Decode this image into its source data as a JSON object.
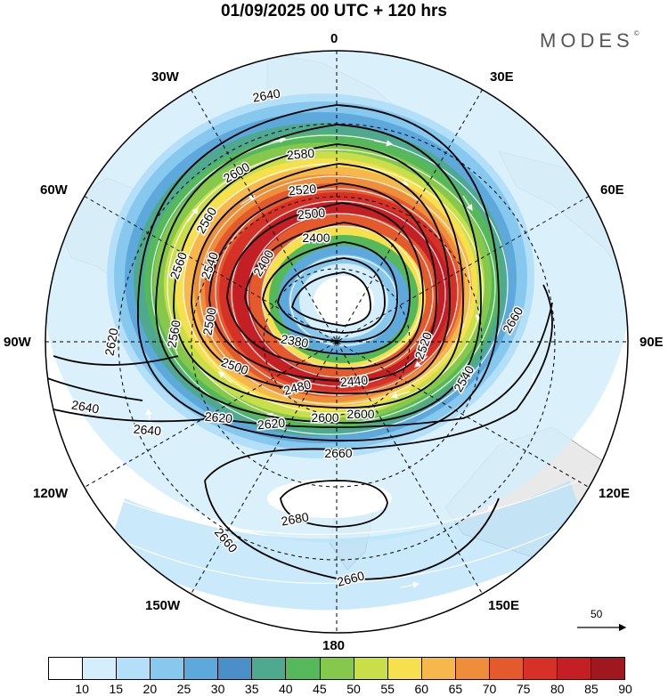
{
  "title": "01/09/2025  00 UTC  + 120 hrs",
  "brand": "MODES",
  "brand_mark": "©",
  "longitude_labels": {
    "n0": "0",
    "n30e": "30E",
    "n60e": "60E",
    "n90e": "90E",
    "n120e": "120E",
    "n150e": "150E",
    "n180": "180",
    "n150w": "150W",
    "n120w": "120W",
    "n90w": "90W",
    "n60w": "60W",
    "n30w": "30W"
  },
  "contour_labels": [
    "2640",
    "2600",
    "2580",
    "2560",
    "2540",
    "2520",
    "2500",
    "2400",
    "2380",
    "2400",
    "2500",
    "2560",
    "2560",
    "2620",
    "2640",
    "2640",
    "2620",
    "2620",
    "2600",
    "2600",
    "2500",
    "2480",
    "2440",
    "2520",
    "2540",
    "2660",
    "2660",
    "2680",
    "2660",
    "2660"
  ],
  "reference_vector": "50",
  "colors": {
    "palette": [
      "#ffffff",
      "#d4eefc",
      "#b3e0f8",
      "#86c8ee",
      "#5da9dc",
      "#4a8fc8",
      "#4fa98f",
      "#55b85a",
      "#86c84b",
      "#c9df4a",
      "#f7e04e",
      "#f6b84a",
      "#ef8e3a",
      "#e55a2c",
      "#d63127",
      "#c31f24",
      "#9f1820"
    ],
    "contour": "#000000",
    "streamline": "#ffffff",
    "land": "#e9e9e9"
  },
  "colorbar": {
    "labels": [
      "10",
      "15",
      "20",
      "25",
      "30",
      "35",
      "40",
      "45",
      "50",
      "55",
      "60",
      "65",
      "70",
      "75",
      "80",
      "85",
      "90"
    ]
  }
}
